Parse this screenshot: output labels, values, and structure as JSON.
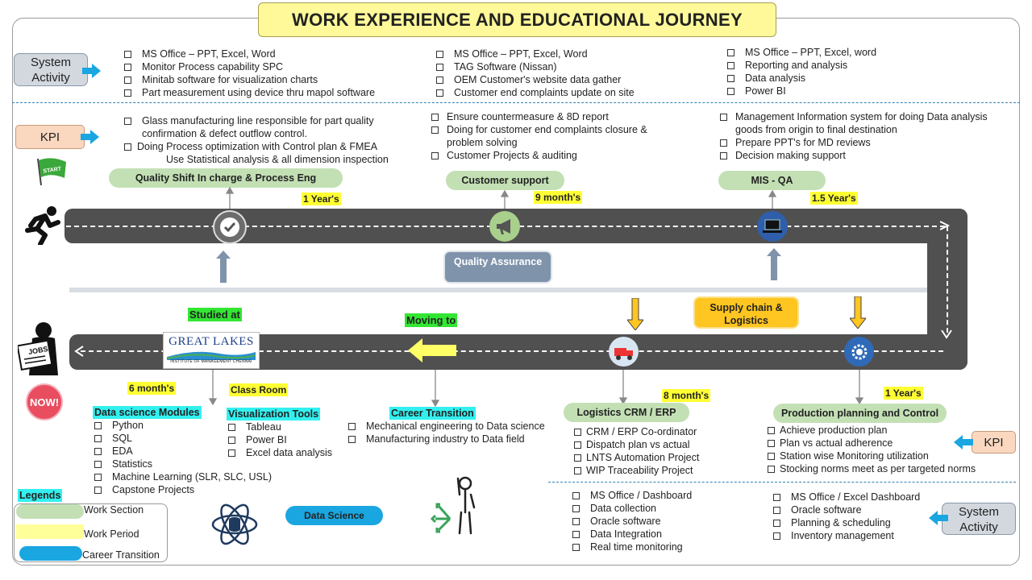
{
  "title": "WORK EXPERIENCE AND EDUCATIONAL JOURNEY",
  "labels": {
    "system_activity": "System Activity",
    "kpi": "KPI",
    "start": "START",
    "now": "NOW!",
    "jobs": "JOBS",
    "quality_assurance": "Quality Assurance",
    "supply_chain": "Supply chain & Logistics",
    "studied_at": "Studied at",
    "moving_to": "Moving to",
    "great_lakes": "GREAT LAKES",
    "great_lakes_sub": "INSTITUTE OF MANAGEMENT CHENNAI"
  },
  "top_roles": [
    {
      "name": "Quality Shift In charge & Process Eng",
      "period": "1 Year's"
    },
    {
      "name": "Customer support",
      "period": "9 month's"
    },
    {
      "name": "MIS - QA",
      "period": "1.5 Year's"
    }
  ],
  "bottom_roles": [
    {
      "name": "Logistics CRM / ERP",
      "period": "8 month's"
    },
    {
      "name": "Production planning and Control",
      "period": "1 Year's"
    }
  ],
  "top_system_activity": [
    [
      "MS Office – PPT, Excel, Word",
      "Monitor Process capability SPC",
      "Minitab software for visualization charts",
      "Part measurement using device thru mapol software"
    ],
    [
      "MS Office – PPT, Excel, Word",
      "TAG Software (Nissan)",
      "OEM Customer's website data gather",
      "Customer end complaints update on site"
    ],
    [
      "MS Office – PPT, Excel, word",
      "Reporting and analysis",
      "Data analysis",
      "Power BI"
    ]
  ],
  "top_kpi": [
    [
      "Glass manufacturing line responsible for part quality confirmation & defect outflow control.",
      "Doing Process optimization with Control plan & FMEA",
      "Use Statistical analysis & all dimension inspection"
    ],
    [
      "Ensure countermeasure & 8D report",
      "Doing for customer end complaints closure & problem solving",
      "Customer Projects & auditing"
    ],
    [
      "Management Information system for doing Data analysis goods from origin to final destination",
      "Prepare PPT's for MD reviews",
      "Decision making support"
    ]
  ],
  "education": {
    "period": "6 month's",
    "classroom": "Class Room",
    "ds_title": "Data science Modules",
    "ds_items": [
      "Python",
      "SQL",
      "EDA",
      "Statistics",
      "Machine Learning (SLR, SLC, USL)",
      "Capstone Projects"
    ],
    "viz_title": "Visualization Tools",
    "viz_items": [
      "Tableau",
      "Power BI",
      "Excel data analysis"
    ],
    "career_title": "Career Transition",
    "career_items": [
      "Mechanical engineering to Data science",
      "Manufacturing industry to Data field"
    ],
    "data_science_pill": "Data Science"
  },
  "bottom_kpi": [
    [
      "CRM / ERP Co-ordinator",
      "Dispatch plan vs actual",
      "LNTS Automation Project",
      "WIP Traceability Project"
    ],
    [
      "Achieve production plan",
      "Plan vs actual adherence",
      "Station wise Monitoring utilization",
      "Stocking norms meet as per targeted norms"
    ]
  ],
  "bottom_system_activity": [
    [
      "MS Office / Dashboard",
      "Data collection",
      "Oracle software",
      "Data Integration",
      "Real time monitoring"
    ],
    [
      "MS Office / Excel Dashboard",
      "Oracle software",
      "Planning & scheduling",
      "Inventory management"
    ]
  ],
  "legend": {
    "title": "Legends",
    "items": [
      {
        "label": "Work Section",
        "color": "#c3e0b5"
      },
      {
        "label": "Work Period",
        "color": "#ffff99"
      },
      {
        "label": "Career Transition",
        "color": "#1aa6e0"
      }
    ]
  },
  "colors": {
    "road": "#505050",
    "accent_blue": "#1aa6e0",
    "kpi": "#fad7bf",
    "yellow": "#ffff33"
  }
}
